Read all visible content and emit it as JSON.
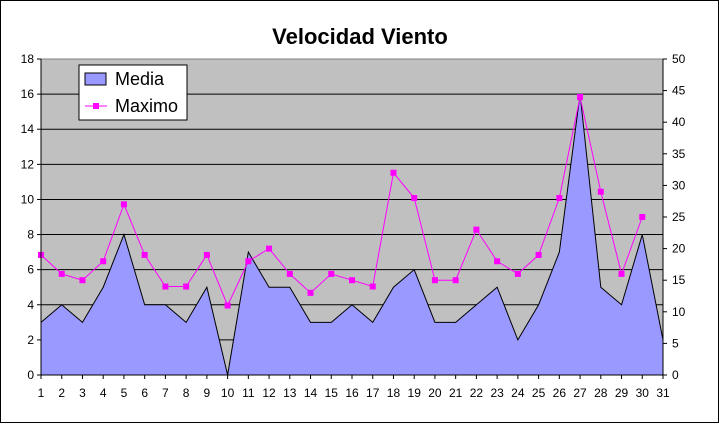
{
  "chart_data": {
    "type": "area",
    "title": "Velocidad Viento",
    "xlabel": "",
    "ylabel": "",
    "categories": [
      "1",
      "2",
      "3",
      "4",
      "5",
      "6",
      "7",
      "8",
      "9",
      "10",
      "11",
      "12",
      "13",
      "14",
      "15",
      "16",
      "17",
      "18",
      "19",
      "20",
      "21",
      "22",
      "23",
      "24",
      "25",
      "26",
      "27",
      "28",
      "29",
      "30",
      "31"
    ],
    "y_left_lim": [
      0,
      18
    ],
    "y_left_ticks": [
      "0",
      "2",
      "4",
      "6",
      "8",
      "10",
      "12",
      "14",
      "16",
      "18"
    ],
    "y_right_lim": [
      0,
      50
    ],
    "y_right_ticks": [
      "0",
      "5",
      "10",
      "15",
      "20",
      "25",
      "30",
      "35",
      "40",
      "45",
      "50"
    ],
    "grid": true,
    "legend_position": "top-left",
    "colors": {
      "plot_bg": "#c0c0c0",
      "area": "#9999ff",
      "line": "#ff00ff",
      "grid": "#000000"
    },
    "series": [
      {
        "name": "Media",
        "type": "area",
        "axis": "left",
        "values": [
          3,
          4,
          3,
          5,
          8,
          4,
          4,
          3,
          5,
          0,
          7,
          5,
          5,
          3,
          3,
          4,
          3,
          5,
          6,
          3,
          3,
          4,
          5,
          2,
          4,
          7,
          16,
          5,
          4,
          8,
          2
        ]
      },
      {
        "name": "Maximo",
        "type": "line",
        "axis": "right",
        "values": [
          19,
          16,
          15,
          18,
          27,
          19,
          14,
          14,
          19,
          11,
          18,
          20,
          16,
          13,
          16,
          15,
          14,
          32,
          28,
          15,
          15,
          23,
          18,
          16,
          19,
          28,
          44,
          29,
          16,
          25,
          null
        ]
      }
    ]
  }
}
